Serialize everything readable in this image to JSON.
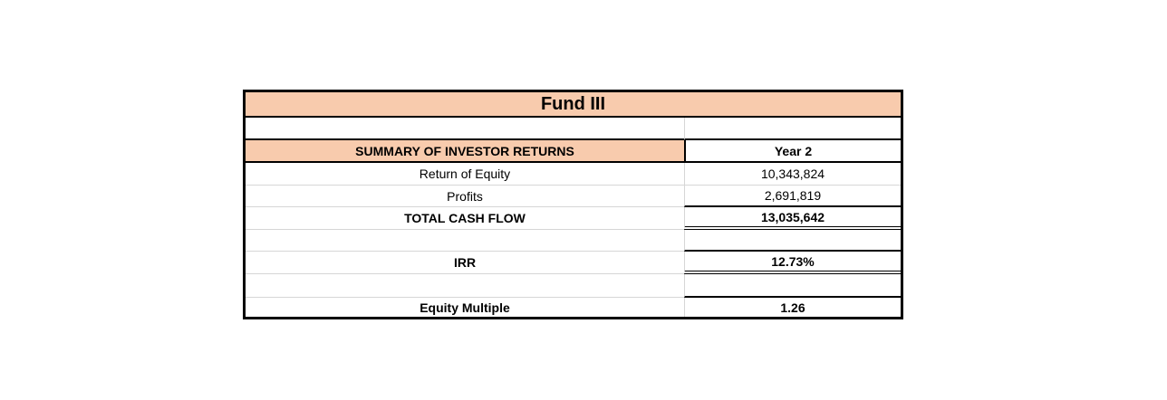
{
  "table": {
    "title": "Fund III",
    "header": {
      "label": "SUMMARY OF INVESTOR RETURNS",
      "column": "Year 2"
    },
    "rows": [
      {
        "label": "Return of Equity",
        "value": "10,343,824"
      },
      {
        "label": "Profits",
        "value": "2,691,819"
      },
      {
        "label": "TOTAL CASH FLOW",
        "value": "13,035,642"
      },
      {
        "label": "",
        "value": ""
      },
      {
        "label": "IRR",
        "value": "12.73%"
      },
      {
        "label": "",
        "value": ""
      },
      {
        "label": "Equity Multiple",
        "value": "1.26"
      }
    ],
    "colors": {
      "header_fill": "#F8CBAD",
      "gridline": "#D6D6D6",
      "border": "#000000",
      "background": "#FFFFFF"
    }
  }
}
